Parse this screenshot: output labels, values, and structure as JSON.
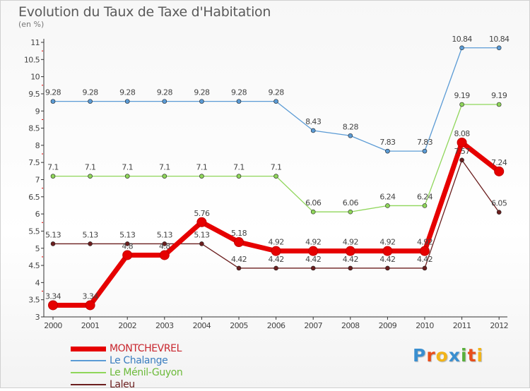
{
  "chart_data": {
    "type": "line",
    "title": "Evolution du Taux de Taxe d'Habitation",
    "subtitle": "(en %)",
    "x": [
      "2000",
      "2001",
      "2002",
      "2003",
      "2004",
      "2005",
      "2006",
      "2007",
      "2008",
      "2009",
      "2010",
      "2011",
      "2012"
    ],
    "ylim": [
      3,
      11
    ],
    "yticks": [
      "3",
      "3.5",
      "4",
      "4.5",
      "5",
      "5.5",
      "6",
      "6.5",
      "7",
      "7.5",
      "8",
      "8.5",
      "9",
      "9.5",
      "10",
      "10.5",
      "11"
    ],
    "grid": false,
    "legend_position": "bottom-left",
    "series": [
      {
        "name": "MONTCHEVREL",
        "color": "#e60000",
        "values": [
          3.34,
          3.34,
          4.8,
          4.8,
          5.76,
          5.18,
          4.92,
          4.92,
          4.92,
          4.92,
          4.92,
          8.08,
          7.24
        ],
        "labels": [
          "3.34",
          "3.34",
          "4.8",
          "4.8",
          "5.76",
          "5.18",
          "4.92",
          "4.92",
          "4.92",
          "4.92",
          "4.92",
          "8.08",
          "7.24"
        ]
      },
      {
        "name": "Le Chalange",
        "color": "#5b9bd5",
        "values": [
          9.28,
          9.28,
          9.28,
          9.28,
          9.28,
          9.28,
          9.28,
          8.43,
          8.28,
          7.83,
          7.83,
          10.84,
          10.84
        ],
        "labels": [
          "9.28",
          "9.28",
          "9.28",
          "9.28",
          "9.28",
          "9.28",
          "9.28",
          "8.43",
          "8.28",
          "7.83",
          "7.83",
          "10.84",
          "10.84"
        ]
      },
      {
        "name": "Le Ménil-Guyon",
        "color": "#8fd65a",
        "values": [
          7.1,
          7.1,
          7.1,
          7.1,
          7.1,
          7.1,
          7.1,
          6.06,
          6.06,
          6.24,
          6.24,
          9.19,
          9.19
        ],
        "labels": [
          "7.1",
          "7.1",
          "7.1",
          "7.1",
          "7.1",
          "7.1",
          "7.1",
          "6.06",
          "6.06",
          "6.24",
          "6.24",
          "9.19",
          "9.19"
        ]
      },
      {
        "name": "Laleu",
        "color": "#6b1e1e",
        "values": [
          5.13,
          5.13,
          5.13,
          5.13,
          5.13,
          4.42,
          4.42,
          4.42,
          4.42,
          4.42,
          4.42,
          7.57,
          6.05
        ],
        "labels": [
          "5.13",
          "5.13",
          "5.13",
          "5.13",
          "5.13",
          "4.42",
          "4.42",
          "4.42",
          "4.42",
          "4.42",
          "4.42",
          "7.57",
          "6.05"
        ]
      }
    ]
  },
  "logo": {
    "letters": [
      "P",
      "r",
      "o",
      "x",
      "i",
      "t",
      "i"
    ],
    "colors": [
      "#3a8fd0",
      "#e84e1b",
      "#f2b418",
      "#3a8fd0",
      "#58b03b",
      "#e84e1b",
      "#f2b418"
    ]
  }
}
